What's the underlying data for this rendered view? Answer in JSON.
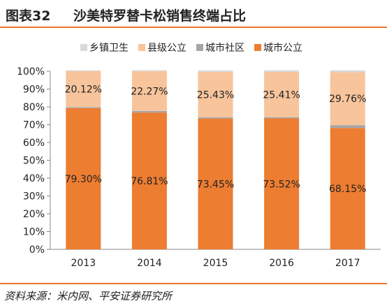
{
  "figure": {
    "number": "图表32",
    "title": "沙美特罗替卡松销售终端占比",
    "source": "资料来源：米内网、平安证券研究所"
  },
  "colors": {
    "township": "#d9d9d9",
    "county": "#f7c49c",
    "community": "#a6a6a6",
    "city": "#ed7d31",
    "accent": "#e8772e"
  },
  "chart_data": {
    "type": "bar",
    "stacked": true,
    "percent": true,
    "categories": [
      "2013",
      "2014",
      "2015",
      "2016",
      "2017"
    ],
    "ylim": [
      0,
      100
    ],
    "yticks": [
      "0%",
      "10%",
      "20%",
      "30%",
      "40%",
      "50%",
      "60%",
      "70%",
      "80%",
      "90%",
      "100%"
    ],
    "grid": false,
    "legend_position": "top",
    "series": [
      {
        "name": "城市公立",
        "values": [
          79.3,
          76.81,
          73.45,
          73.52,
          68.15
        ],
        "labels": [
          "79.30%",
          "76.81%",
          "73.45%",
          "73.52%",
          "68.15%"
        ],
        "color": "#ed7d31"
      },
      {
        "name": "城市社区",
        "values": [
          0.6,
          0.9,
          0.7,
          0.7,
          1.6
        ],
        "color": "#a6a6a6"
      },
      {
        "name": "县级公立",
        "values": [
          20.12,
          22.27,
          25.43,
          25.41,
          29.76
        ],
        "labels": [
          "20.12%",
          "22.27%",
          "25.43%",
          "25.41%",
          "29.76%"
        ],
        "color": "#f7c49c"
      },
      {
        "name": "乡镇卫生",
        "values": [
          0.5,
          0.6,
          0.9,
          0.9,
          1.0
        ],
        "color": "#d9d9d9"
      }
    ]
  }
}
